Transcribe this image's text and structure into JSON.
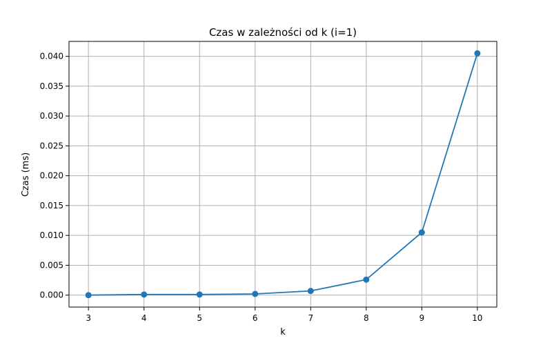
{
  "chart_data": {
    "type": "line",
    "title": "Czas w zależności od k (i=1)",
    "xlabel": "k",
    "ylabel": "Czas (ms)",
    "x": [
      3,
      4,
      5,
      6,
      7,
      8,
      9,
      10
    ],
    "series": [
      {
        "values": [
          0.0,
          0.0001,
          0.0001,
          0.0002,
          0.0007,
          0.0026,
          0.0105,
          0.0405
        ],
        "color": "#1f77b4",
        "marker": "circle"
      }
    ],
    "xticks": [
      3,
      4,
      5,
      6,
      7,
      8,
      9,
      10
    ],
    "yticks": [
      "0.000",
      "0.005",
      "0.010",
      "0.015",
      "0.020",
      "0.025",
      "0.030",
      "0.035",
      "0.040"
    ],
    "xlim": [
      2.65,
      10.35
    ],
    "ylim": [
      -0.002,
      0.0425
    ],
    "grid": true
  }
}
